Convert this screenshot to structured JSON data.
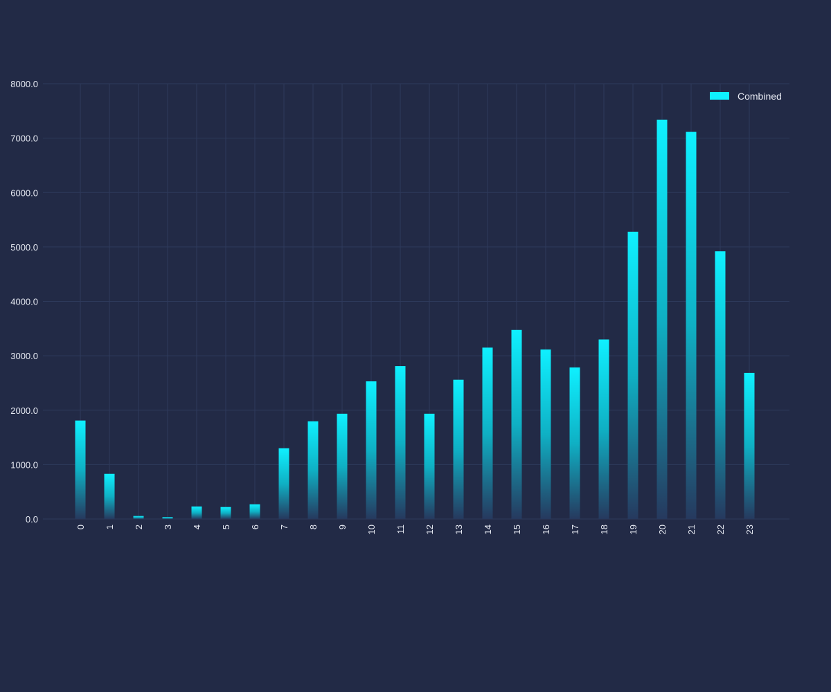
{
  "chart_data": {
    "type": "bar",
    "title": "",
    "xlabel": "",
    "ylabel": "",
    "categories": [
      "0",
      "1",
      "2",
      "3",
      "4",
      "5",
      "6",
      "7",
      "8",
      "9",
      "10",
      "11",
      "12",
      "13",
      "14",
      "15",
      "16",
      "17",
      "18",
      "19",
      "20",
      "21",
      "22",
      "23"
    ],
    "series": [
      {
        "name": "Combined",
        "values": [
          1810,
          830,
          55,
          35,
          230,
          220,
          270,
          1300,
          1795,
          1935,
          2530,
          2810,
          1935,
          2560,
          3150,
          3475,
          3115,
          2785,
          3300,
          5280,
          7340,
          7115,
          4920,
          2685
        ]
      }
    ],
    "ylim": [
      0,
      8000
    ],
    "y_ticks": [
      "0.0",
      "1000.0",
      "2000.0",
      "3000.0",
      "4000.0",
      "5000.0",
      "6000.0",
      "7000.0",
      "8000.0"
    ],
    "grid": true,
    "legend_position": "top-right",
    "colors": {
      "background": "#222a46",
      "bar_top": "#0ff0ff",
      "bar_bottom": "#26395e",
      "grid": "#2e3a5c",
      "text": "#e6e9f2"
    }
  }
}
